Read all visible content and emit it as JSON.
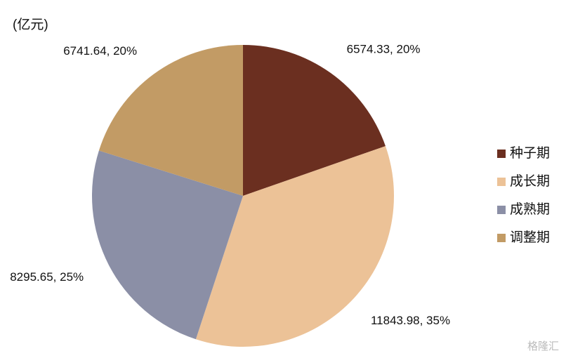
{
  "chart_data": {
    "type": "pie",
    "unit": "(亿元)",
    "categories": [
      "种子期",
      "成长期",
      "成熟期",
      "调整期"
    ],
    "values": [
      6574.33,
      11843.98,
      8295.65,
      6741.64
    ],
    "value_labels": [
      "6574.33, 20%",
      "11843.98, 35%",
      "8295.65, 25%",
      "6741.64, 20%"
    ],
    "colors": [
      "#6b2f20",
      "#ecc297",
      "#8b8fa6",
      "#c29b65"
    ],
    "legend": "right",
    "watermark": "格隆汇"
  }
}
